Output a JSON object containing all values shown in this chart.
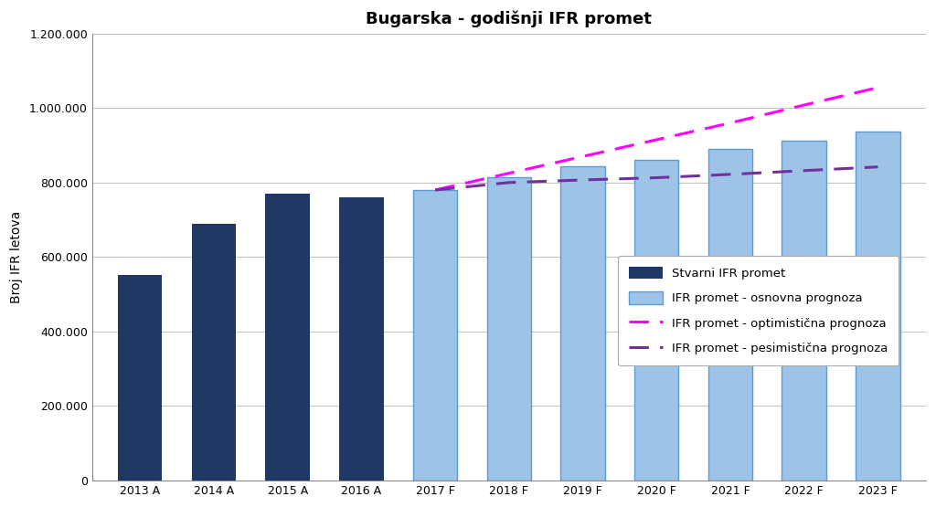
{
  "title": "Bugarska - godišnji IFR promet",
  "ylabel": "Broj IFR letova",
  "actual_years": [
    "2013 A",
    "2014 A",
    "2015 A",
    "2016 A"
  ],
  "actual_values": [
    551000,
    690000,
    771000,
    761000
  ],
  "forecast_years": [
    "2017 F",
    "2018 F",
    "2019 F",
    "2020 F",
    "2021 F",
    "2022 F",
    "2023 F"
  ],
  "forecast_values": [
    780000,
    815000,
    843000,
    862000,
    890000,
    912000,
    937000
  ],
  "optimistic_values": [
    780000,
    825000,
    870000,
    915000,
    960000,
    1008000,
    1055000
  ],
  "pessimistic_values": [
    780000,
    800000,
    807000,
    813000,
    822000,
    832000,
    842000
  ],
  "actual_bar_color": "#1F3864",
  "forecast_bar_color": "#9DC3E6",
  "forecast_bar_edge_color": "#5B9BD5",
  "optimistic_color": "#FF00FF",
  "pessimistic_color": "#7030A0",
  "ylim": [
    0,
    1200000
  ],
  "yticks": [
    0,
    200000,
    400000,
    600000,
    800000,
    1000000,
    1200000
  ],
  "ytick_labels": [
    "0",
    "200.000",
    "400.000",
    "600.000",
    "800.000",
    "1.000.000",
    "1.200.000"
  ],
  "legend_labels": [
    "Stvarni IFR promet",
    "IFR promet - osnovna prognoza",
    "IFR promet - optimistična prognoza",
    "IFR promet - pesimistična prognoza"
  ],
  "background_color": "#FFFFFF",
  "grid_color": "#C0C0C0",
  "title_fontsize": 13,
  "axis_fontsize": 10,
  "tick_fontsize": 9,
  "legend_fontsize": 9.5
}
